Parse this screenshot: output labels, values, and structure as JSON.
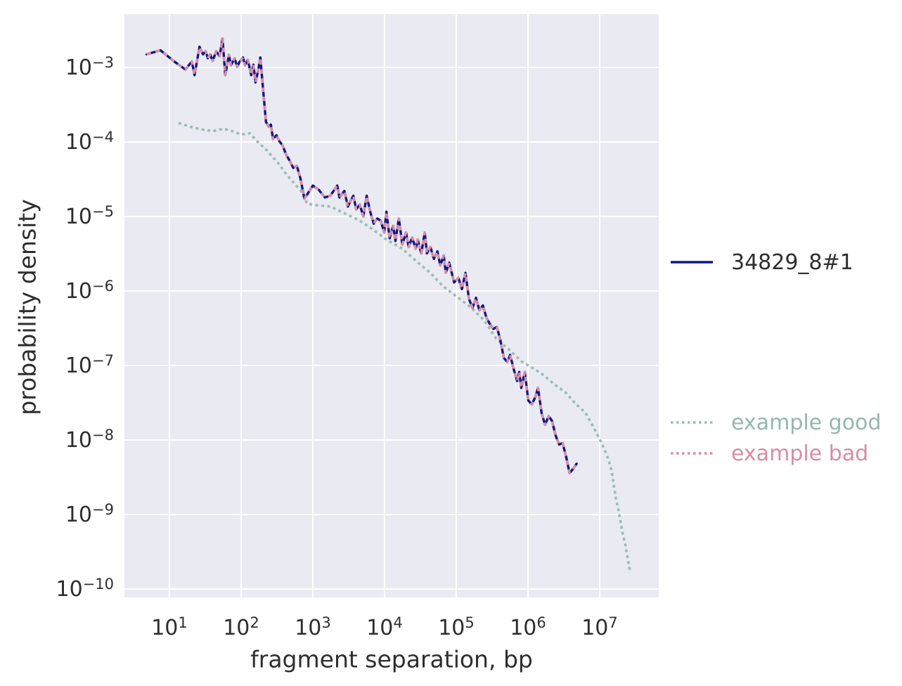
{
  "figure": {
    "background": "#ffffff",
    "plot_background": "#eaeaf2",
    "grid_color": "#ffffff",
    "text_color": "#2e2e2e"
  },
  "chart_data": {
    "type": "line",
    "title": "",
    "xlabel": "fragment separation, bp",
    "ylabel": "probability density",
    "x_scale": "log",
    "y_scale": "log",
    "grid": true,
    "legend_position": "right-outside",
    "xlim_log10": [
      0.3725,
      7.8235
    ],
    "ylim_log10": [
      -10.113,
      -2.283
    ],
    "x_tick_exponents": [
      1,
      2,
      3,
      4,
      5,
      6,
      7
    ],
    "y_tick_exponents": [
      -3,
      -4,
      -5,
      -6,
      -7,
      -8,
      -9,
      -10
    ],
    "series": [
      {
        "name": "34829_8#1",
        "color": "#0d1a85",
        "label_color": "#2e2e2e",
        "line_style": "solid",
        "points": [
          [
            4.8,
            0.0015
          ],
          [
            7.5,
            0.0017
          ],
          [
            11.7,
            0.0012
          ],
          [
            16.7,
            0.00094
          ],
          [
            20.5,
            0.0012
          ],
          [
            22.4,
            0.00079
          ],
          [
            26.3,
            0.0019
          ],
          [
            29.4,
            0.0015
          ],
          [
            32,
            0.00165
          ],
          [
            34.4,
            0.00133
          ],
          [
            37,
            0.0015
          ],
          [
            40,
            0.00122
          ],
          [
            45,
            0.00165
          ],
          [
            50,
            0.00142
          ],
          [
            55,
            0.00245
          ],
          [
            60,
            0.00079
          ],
          [
            67.5,
            0.00148
          ],
          [
            72,
            0.00107
          ],
          [
            81,
            0.00133
          ],
          [
            88,
            0.00102
          ],
          [
            95,
            0.00119
          ],
          [
            106,
            0.00136
          ],
          [
            113,
            0.00107
          ],
          [
            124,
            0.00127
          ],
          [
            138,
            0.00079
          ],
          [
            148,
            0.00109
          ],
          [
            159,
            0.00063
          ],
          [
            173,
            0.00092
          ],
          [
            185,
            0.00136
          ],
          [
            208,
            0.00038
          ],
          [
            222,
            0.000186
          ],
          [
            243,
            0.00016
          ],
          [
            260,
            0.000171
          ],
          [
            278,
            0.00011
          ],
          [
            311,
            0.000123
          ],
          [
            340,
            0.000103
          ],
          [
            380,
            8.9e-05
          ],
          [
            426,
            6.7e-05
          ],
          [
            476,
            5.6e-05
          ],
          [
            533,
            4.5e-05
          ],
          [
            597,
            4.8e-05
          ],
          [
            667,
            3.3e-05
          ],
          [
            764,
            1.73e-05
          ],
          [
            1000,
            2.6e-05
          ],
          [
            1200,
            2.3e-05
          ],
          [
            1470,
            1.8e-05
          ],
          [
            1750,
            1.9e-05
          ],
          [
            2190,
            2.6e-05
          ],
          [
            2350,
            1.8e-05
          ],
          [
            2750,
            2.2e-05
          ],
          [
            3080,
            1.36e-05
          ],
          [
            3440,
            1.7e-05
          ],
          [
            3680,
            1.9e-05
          ],
          [
            4030,
            1.24e-05
          ],
          [
            4510,
            1.45e-05
          ],
          [
            5040,
            1e-05
          ],
          [
            5640,
            1.9e-05
          ],
          [
            6310,
            1.16e-05
          ],
          [
            7060,
            8e-06
          ],
          [
            7910,
            9.4e-06
          ],
          [
            8830,
            8.8e-06
          ],
          [
            9890,
            6.1e-06
          ],
          [
            10600,
            1.16e-05
          ],
          [
            11800,
            5.1e-06
          ],
          [
            13200,
            7.5e-06
          ],
          [
            14200,
            4.7e-06
          ],
          [
            15800,
            9.4e-06
          ],
          [
            17700,
            4.2e-06
          ],
          [
            19900,
            6.1e-06
          ],
          [
            21700,
            3.9e-06
          ],
          [
            24300,
            5.2e-06
          ],
          [
            27200,
            3.7e-06
          ],
          [
            29000,
            4.9e-06
          ],
          [
            32500,
            3.2e-06
          ],
          [
            36400,
            6.1e-06
          ],
          [
            38900,
            3.2e-06
          ],
          [
            43600,
            3.9e-06
          ],
          [
            48800,
            2.7e-06
          ],
          [
            54600,
            3.4e-06
          ],
          [
            59700,
            2.2e-06
          ],
          [
            66700,
            3e-06
          ],
          [
            71400,
            1.75e-06
          ],
          [
            79800,
            2.4e-06
          ],
          [
            93300,
            1.3e-06
          ],
          [
            107000,
            1.5e-06
          ],
          [
            120000,
            1.06e-06
          ],
          [
            134000,
            1.75e-06
          ],
          [
            150000,
            7.9e-07
          ],
          [
            168000,
            5.9e-07
          ],
          [
            188000,
            8.1e-07
          ],
          [
            210000,
            5.5e-07
          ],
          [
            235000,
            6.4e-07
          ],
          [
            263000,
            4.4e-07
          ],
          [
            294000,
            3.6e-07
          ],
          [
            329000,
            3.1e-07
          ],
          [
            368000,
            3.3e-07
          ],
          [
            412000,
            2.2e-07
          ],
          [
            460000,
            1.27e-07
          ],
          [
            515000,
            1.11e-07
          ],
          [
            564000,
            1.39e-07
          ],
          [
            631000,
            9e-08
          ],
          [
            706000,
            6.2e-08
          ],
          [
            755000,
            8.2e-08
          ],
          [
            807000,
            5e-08
          ],
          [
            904000,
            8.2e-08
          ],
          [
            1010000.0,
            3.4e-08
          ],
          [
            1130000.0,
            3e-08
          ],
          [
            1270000.0,
            3.8e-08
          ],
          [
            1380000.0,
            5e-08
          ],
          [
            1550000.0,
            2.3e-08
          ],
          [
            1730000.0,
            1.6e-08
          ],
          [
            1940000.0,
            2.1e-08
          ],
          [
            2170000.0,
            1.8e-08
          ],
          [
            2430000.0,
            1.15e-08
          ],
          [
            2720000.0,
            8.7e-09
          ],
          [
            3040000.0,
            9.1e-09
          ],
          [
            3400000.0,
            6e-09
          ],
          [
            3800000.0,
            3.6e-09
          ],
          [
            4260000.0,
            4.1e-09
          ],
          [
            4760000.0,
            4.8e-09
          ]
        ]
      },
      {
        "name": "example good",
        "color": "#9abdb3",
        "label_color": "#93b8ae",
        "line_style": "dotted",
        "points": [
          [
            13.4,
            0.00018
          ],
          [
            19.6,
            0.00016
          ],
          [
            28.8,
            0.000147
          ],
          [
            40.3,
            0.00014
          ],
          [
            56.4,
            0.00015
          ],
          [
            70.6,
            0.000143
          ],
          [
            101,
            0.000126
          ],
          [
            132,
            0.000131
          ],
          [
            173,
            9.9e-05
          ],
          [
            217,
            8.1e-05
          ],
          [
            272,
            6.4e-05
          ],
          [
            340,
            5e-05
          ],
          [
            426,
            3.7e-05
          ],
          [
            533,
            2.9e-05
          ],
          [
            682,
            2.2e-05
          ],
          [
            836,
            1.48e-05
          ],
          [
            1120,
            1.42e-05
          ],
          [
            1750,
            1.36e-05
          ],
          [
            2750,
            1.11e-05
          ],
          [
            4310,
            9e-06
          ],
          [
            6750,
            6.8e-06
          ],
          [
            10600,
            4.9e-06
          ],
          [
            17700,
            3.7e-06
          ],
          [
            27800,
            2.5e-06
          ],
          [
            43600,
            1.75e-06
          ],
          [
            63800,
            1.18e-06
          ],
          [
            107000,
            8.1e-07
          ],
          [
            164000,
            5.9e-07
          ],
          [
            246000,
            4e-07
          ],
          [
            360000,
            2.3e-07
          ],
          [
            540000,
            1.65e-07
          ],
          [
            807000,
            1.14e-07
          ],
          [
            1180000.0,
            9.2e-08
          ],
          [
            1660000.0,
            7.4e-08
          ],
          [
            2320000.0,
            5.6e-08
          ],
          [
            3400000.0,
            4.3e-08
          ],
          [
            4560000.0,
            3.1e-08
          ],
          [
            6380000.0,
            2.3e-08
          ],
          [
            8360000.0,
            1.43e-08
          ],
          [
            10000000.0,
            1.03e-08
          ],
          [
            12000000.0,
            7e-09
          ],
          [
            13400000.0,
            5.3e-09
          ],
          [
            14700000.0,
            3.8e-09
          ],
          [
            15700000.0,
            2.5e-09
          ],
          [
            16700000.0,
            1.7e-09
          ],
          [
            18300000.0,
            1.14e-09
          ],
          [
            19600000.0,
            7.9e-10
          ],
          [
            21000000.0,
            5.4e-10
          ],
          [
            23000000.0,
            3.8e-10
          ],
          [
            24500000.0,
            2.6e-10
          ],
          [
            26300000.0,
            1.8e-10
          ]
        ]
      },
      {
        "name": "example bad",
        "color": "#d88da6",
        "label_color": "#d78da4",
        "line_style": "dotted-overlay",
        "points_same_as": "34829_8#1"
      }
    ]
  }
}
